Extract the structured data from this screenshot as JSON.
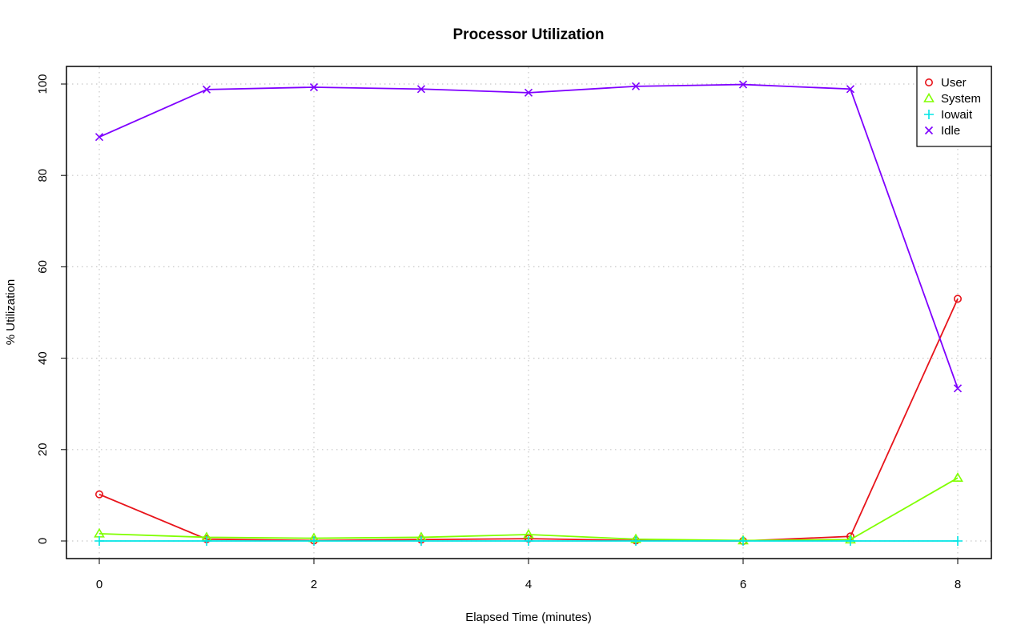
{
  "chart_data": {
    "type": "line",
    "title": "Processor Utilization",
    "xlabel": "Elapsed Time (minutes)",
    "ylabel": "% Utilization",
    "xlim": [
      0,
      8
    ],
    "ylim": [
      0,
      100
    ],
    "x_ticks": [
      "0",
      "2",
      "4",
      "6",
      "8"
    ],
    "y_ticks": [
      "0",
      "20",
      "40",
      "60",
      "80",
      "100"
    ],
    "grid": true,
    "legend_position": "top-right",
    "x": [
      0,
      1,
      2,
      3,
      4,
      5,
      6,
      7,
      8
    ],
    "series": [
      {
        "name": "User",
        "color": "#e8141b",
        "marker": "circle",
        "values": [
          10.2,
          0.4,
          0.1,
          0.3,
          0.5,
          0.1,
          0.0,
          1.0,
          53.0
        ]
      },
      {
        "name": "System",
        "color": "#80ff00",
        "marker": "triangle",
        "values": [
          1.6,
          0.8,
          0.6,
          0.8,
          1.4,
          0.4,
          0.1,
          0.3,
          13.8
        ]
      },
      {
        "name": "Iowait",
        "color": "#00e5e5",
        "marker": "plus",
        "values": [
          0,
          0,
          0,
          0,
          0,
          0,
          0,
          0,
          0
        ]
      },
      {
        "name": "Idle",
        "color": "#7f00ff",
        "marker": "cross",
        "values": [
          88.4,
          98.8,
          99.3,
          98.9,
          98.1,
          99.5,
          99.9,
          98.9,
          33.4
        ]
      }
    ]
  }
}
